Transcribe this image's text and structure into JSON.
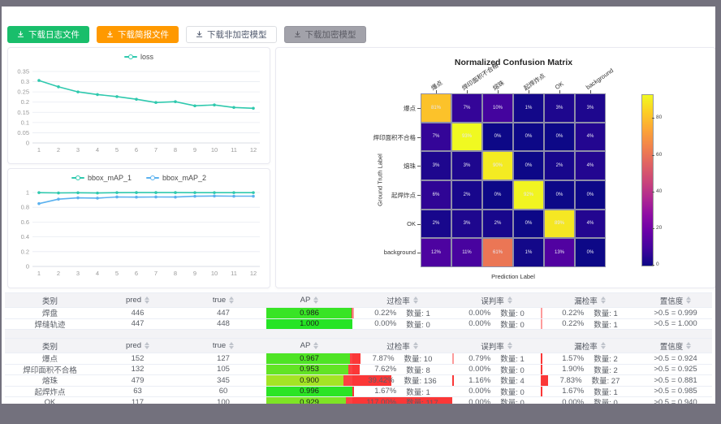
{
  "window": {
    "frame_color": "#73717d"
  },
  "toolbar": {
    "buttons": [
      {
        "label": "下载日志文件",
        "style": "green"
      },
      {
        "label": "下载简报文件",
        "style": "orange"
      },
      {
        "label": "下载非加密模型",
        "style": "plain"
      },
      {
        "label": "下载加密模型",
        "style": "gray"
      }
    ]
  },
  "chart_data": [
    {
      "type": "line",
      "title": "",
      "x": [
        1,
        2,
        3,
        4,
        5,
        6,
        7,
        8,
        9,
        10,
        11,
        12
      ],
      "series": [
        {
          "name": "loss",
          "color": "#2fc9ae",
          "values": [
            0.306,
            0.275,
            0.25,
            0.237,
            0.227,
            0.214,
            0.198,
            0.202,
            0.182,
            0.186,
            0.174,
            0.17
          ]
        }
      ],
      "ylim": [
        0,
        0.35
      ],
      "ytick_step": 0.05,
      "grid": true,
      "legend_position": "top-center"
    },
    {
      "type": "line",
      "title": "",
      "x": [
        1,
        2,
        3,
        4,
        5,
        6,
        7,
        8,
        9,
        10,
        11,
        12
      ],
      "series": [
        {
          "name": "bbox_mAP_1",
          "color": "#2fc9ae",
          "values": [
            0.998,
            0.994,
            0.997,
            0.993,
            0.998,
            0.999,
            0.999,
            0.999,
            0.998,
            0.998,
            0.998,
            0.998
          ]
        },
        {
          "name": "bbox_mAP_2",
          "color": "#5ab1ef",
          "values": [
            0.85,
            0.91,
            0.928,
            0.924,
            0.94,
            0.937,
            0.94,
            0.938,
            0.949,
            0.953,
            0.95,
            0.95
          ]
        }
      ],
      "ylim": [
        0,
        1
      ],
      "ytick_step": 0.2,
      "grid": true,
      "legend_position": "top-center"
    },
    {
      "type": "heatmap",
      "title": "Normalized Confusion Matrix",
      "xlabel": "Prediction Label",
      "ylabel": "Ground Truth Label",
      "labels": [
        "爆点",
        "焊印面积不合格",
        "熔珠",
        "起焊炸点",
        "OK",
        "background"
      ],
      "values_percent": [
        [
          81,
          7,
          10,
          1,
          3,
          3
        ],
        [
          7,
          93,
          0,
          0,
          0,
          4
        ],
        [
          3,
          3,
          90,
          0,
          2,
          4
        ],
        [
          6,
          2,
          0,
          92,
          0,
          0
        ],
        [
          2,
          3,
          2,
          0,
          89,
          4
        ],
        [
          12,
          11,
          61,
          1,
          13,
          0
        ]
      ],
      "vmax": 93,
      "colormap": "plasma",
      "colorbar_ticks": [
        0,
        20,
        40,
        60,
        80
      ]
    }
  ],
  "tables": {
    "columns": [
      {
        "label": "类别",
        "sortable": false
      },
      {
        "label": "pred",
        "sortable": true
      },
      {
        "label": "true",
        "sortable": true
      },
      {
        "label": "AP",
        "sortable": true
      },
      {
        "label": "过检率",
        "sortable": true
      },
      {
        "label": "误判率",
        "sortable": true
      },
      {
        "label": "漏检率",
        "sortable": true
      },
      {
        "label": "置信度",
        "sortable": true
      }
    ],
    "quantity_label": "数量:",
    "bar_red": "#fb2121",
    "table1_rows": [
      {
        "category": "焊盘",
        "pred": "446",
        "true": "447",
        "ap": "0.986",
        "over": {
          "pct": "0.22%",
          "n": "1"
        },
        "mis": {
          "pct": "0.00%",
          "n": "0"
        },
        "miss": {
          "pct": "0.22%",
          "n": "1"
        },
        "conf": ">0.5 = 0.999"
      },
      {
        "category": "焊缝轨迹",
        "pred": "447",
        "true": "448",
        "ap": "1.000",
        "over": {
          "pct": "0.00%",
          "n": "0"
        },
        "mis": {
          "pct": "0.00%",
          "n": "0"
        },
        "miss": {
          "pct": "0.22%",
          "n": "1"
        },
        "conf": ">0.5 = 1.000"
      }
    ],
    "table2_rows": [
      {
        "category": "爆点",
        "pred": "152",
        "true": "127",
        "ap": "0.967",
        "over": {
          "pct": "7.87%",
          "n": "10"
        },
        "mis": {
          "pct": "0.79%",
          "n": "1"
        },
        "miss": {
          "pct": "1.57%",
          "n": "2"
        },
        "conf": ">0.5 = 0.924"
      },
      {
        "category": "焊印面积不合格",
        "pred": "132",
        "true": "105",
        "ap": "0.953",
        "over": {
          "pct": "7.62%",
          "n": "8"
        },
        "mis": {
          "pct": "0.00%",
          "n": "0"
        },
        "miss": {
          "pct": "1.90%",
          "n": "2"
        },
        "conf": ">0.5 = 0.925"
      },
      {
        "category": "熔珠",
        "pred": "479",
        "true": "345",
        "ap": "0.900",
        "over": {
          "pct": "39.42%",
          "n": "136"
        },
        "mis": {
          "pct": "1.16%",
          "n": "4"
        },
        "miss": {
          "pct": "7.83%",
          "n": "27"
        },
        "conf": ">0.5 = 0.881"
      },
      {
        "category": "起焊炸点",
        "pred": "63",
        "true": "60",
        "ap": "0.996",
        "over": {
          "pct": "1.67%",
          "n": "1"
        },
        "mis": {
          "pct": "0.00%",
          "n": "0"
        },
        "miss": {
          "pct": "1.67%",
          "n": "1"
        },
        "conf": ">0.5 = 0.985"
      },
      {
        "category": "OK",
        "pred": "117",
        "true": "100",
        "ap": "0.929",
        "over": {
          "pct": "117.00%",
          "n": "117"
        },
        "mis": {
          "pct": "0.00%",
          "n": "0"
        },
        "miss": {
          "pct": "0.00%",
          "n": "0"
        },
        "conf": ">0.5 = 0.940"
      }
    ]
  }
}
